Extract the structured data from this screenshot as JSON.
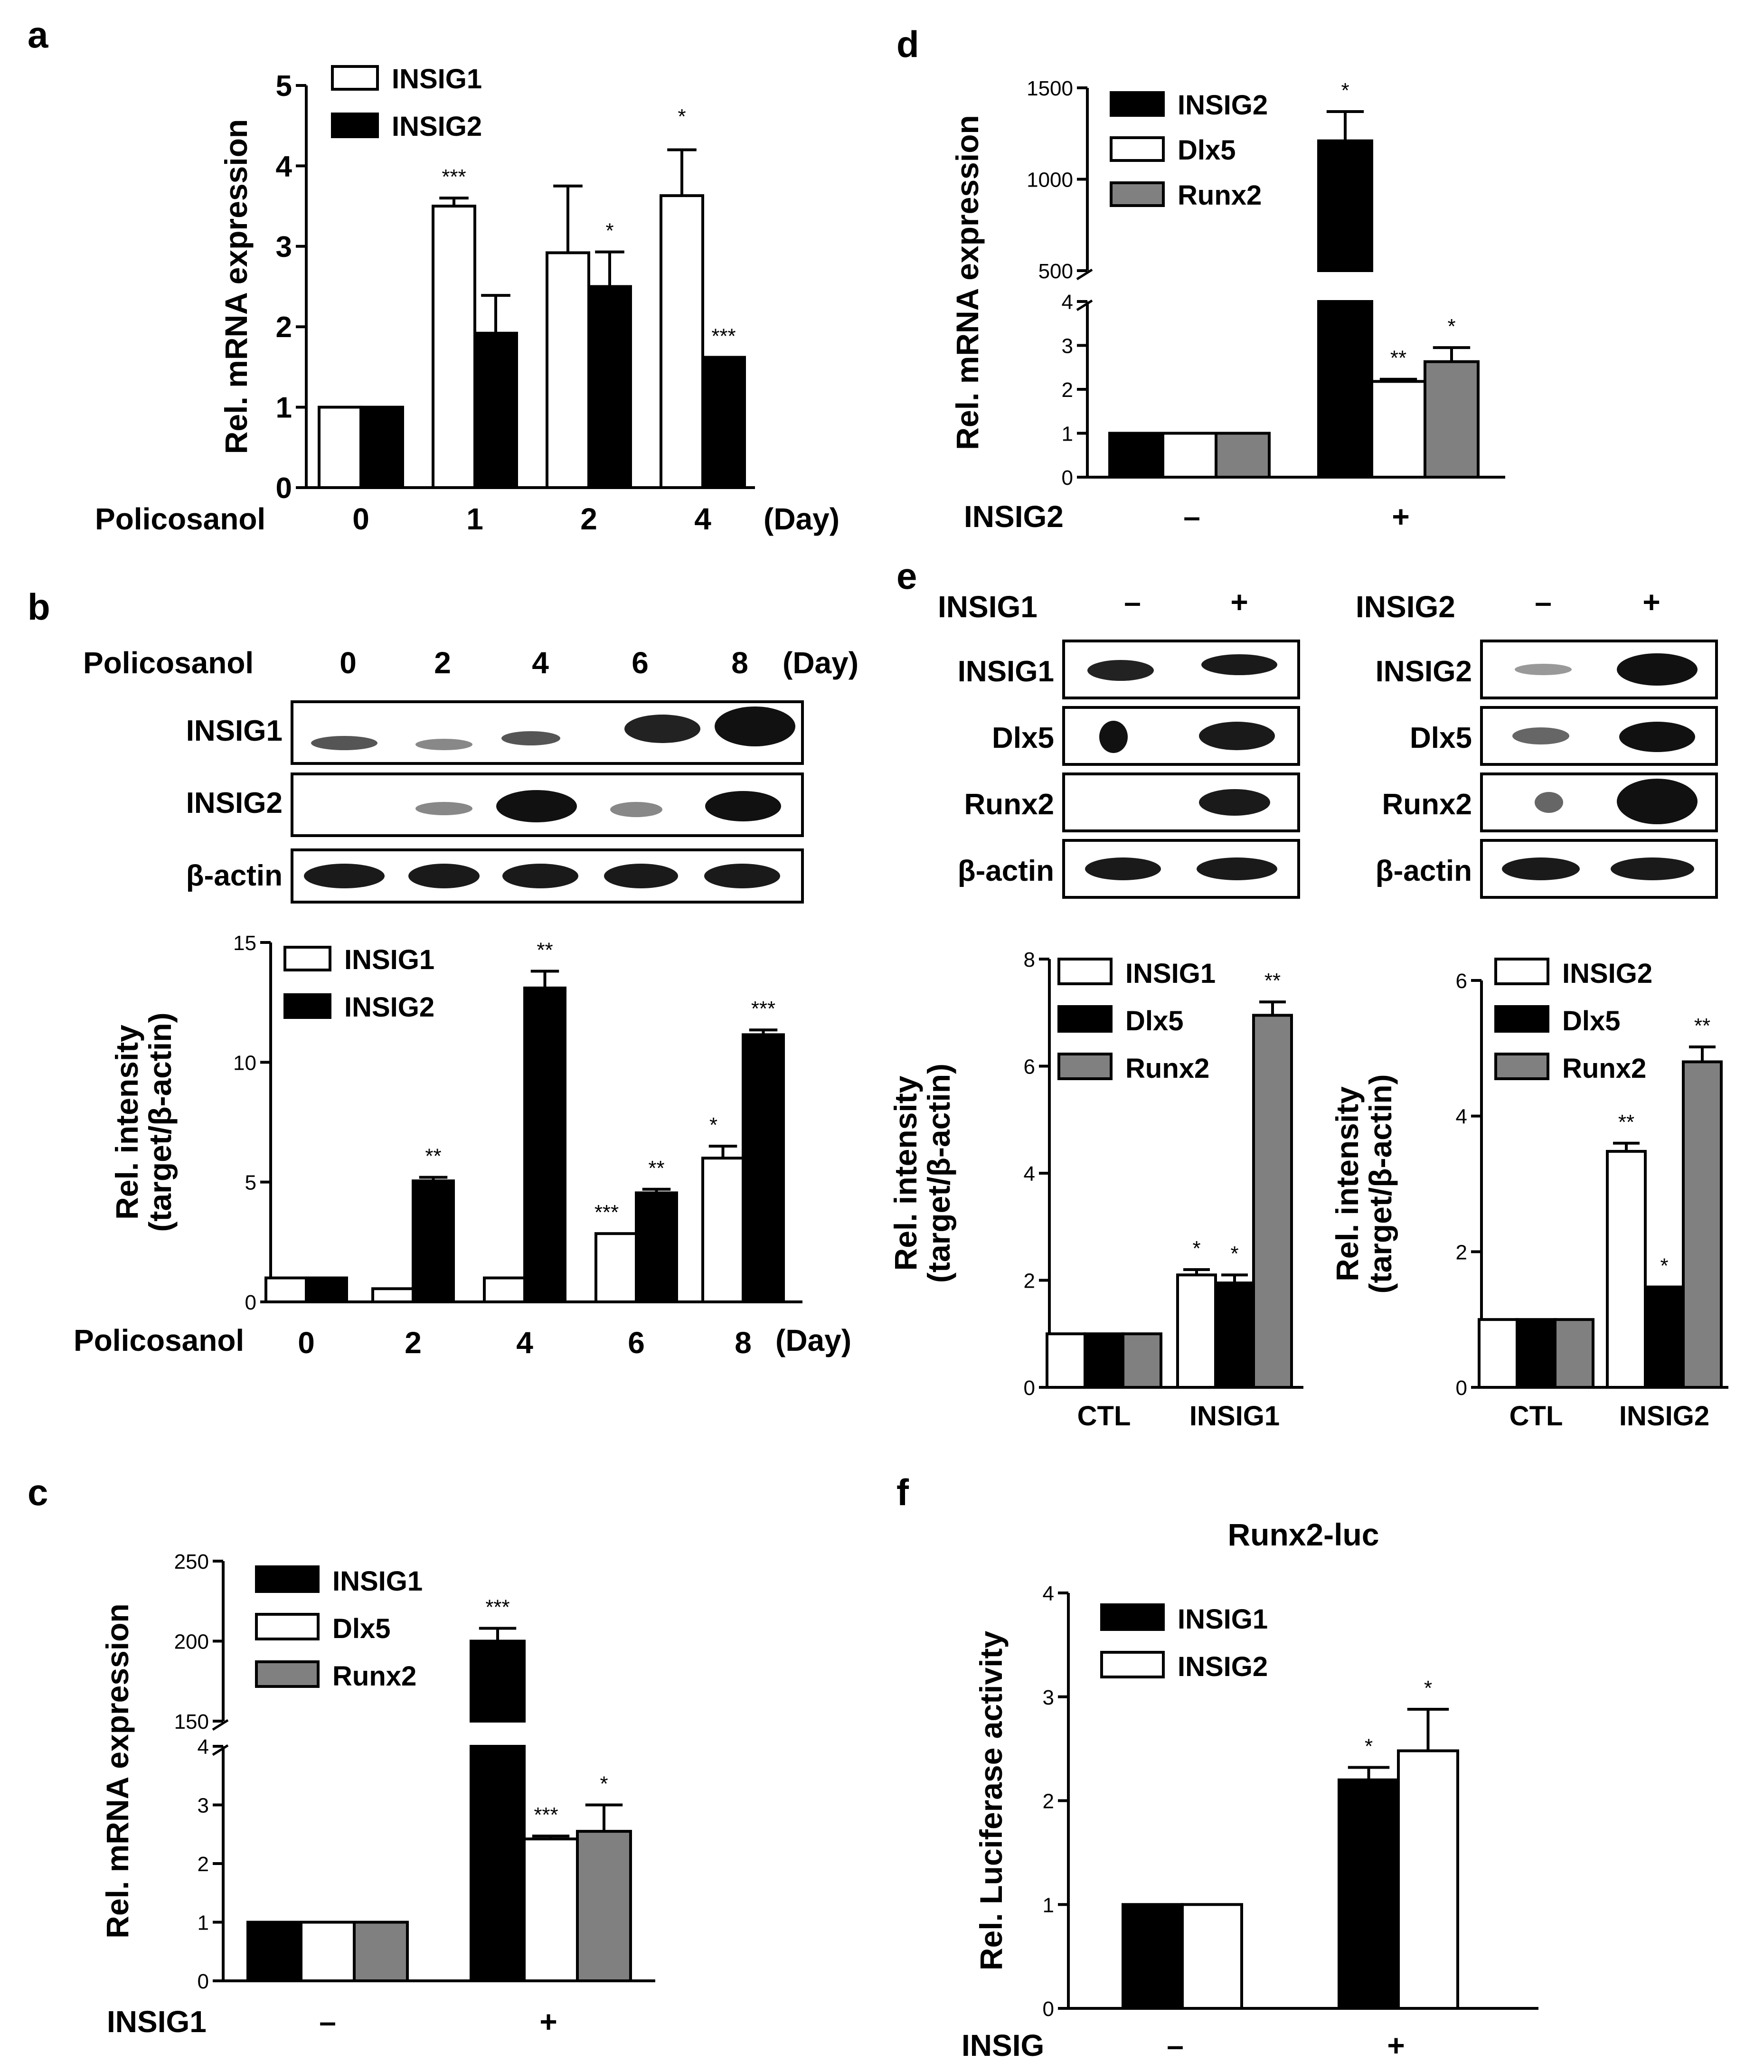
{
  "colors": {
    "open": "#ffffff",
    "black": "#000000",
    "grey": "#808080",
    "band": "#222222"
  },
  "panels": {
    "a": {
      "letter": "a",
      "treatment": "Policosanol",
      "unit": "(Day)"
    },
    "b": {
      "letter": "b",
      "treatment_top": "Policosanol",
      "unit_top": "(Day)",
      "days": [
        "0",
        "2",
        "4",
        "6",
        "8"
      ],
      "rows": [
        {
          "label": "INSIG1"
        },
        {
          "label": "INSIG2"
        },
        {
          "label": "β-actin"
        }
      ],
      "treatment_bottom": "Policosanol",
      "unit_bottom": "(Day)"
    },
    "c": {
      "letter": "c",
      "treatment": "INSIG1",
      "minus": "–",
      "plus": "+"
    },
    "d": {
      "letter": "d",
      "treatment": "INSIG2",
      "minus": "–",
      "plus": "+"
    },
    "e": {
      "letter": "e",
      "left": {
        "treatment": "INSIG1",
        "minus": "–",
        "plus": "+",
        "rows": [
          {
            "label": "INSIG1"
          },
          {
            "label": "Dlx5"
          },
          {
            "label": "Runx2"
          },
          {
            "label": "β-actin"
          }
        ]
      },
      "right": {
        "treatment": "INSIG2",
        "minus": "–",
        "plus": "+",
        "rows": [
          {
            "label": "INSIG2"
          },
          {
            "label": "Dlx5"
          },
          {
            "label": "Runx2"
          },
          {
            "label": "β-actin"
          }
        ]
      }
    },
    "f": {
      "letter": "f",
      "treatment": "INSIG",
      "minus": "–",
      "plus": "+"
    }
  },
  "chart_data": [
    {
      "id": "a",
      "type": "bar",
      "ylabel": "Rel. mRNA expression",
      "ylim": [
        0,
        5
      ],
      "yticks": [
        "0",
        "1",
        "2",
        "3",
        "4",
        "5"
      ],
      "categories": [
        "0",
        "1",
        "2",
        "4"
      ],
      "series": [
        {
          "name": "INSIG1",
          "color": "open",
          "values": [
            1,
            3.5,
            2.92,
            3.63
          ],
          "errors": [
            0,
            0.1,
            0.83,
            0.57
          ],
          "sig": [
            "",
            "***",
            "",
            ""
          ]
        },
        {
          "name": "INSIG2",
          "color": "black",
          "values": [
            1,
            1.92,
            2.5,
            1.62
          ],
          "errors": [
            0,
            0.47,
            0.43,
            0
          ],
          "sig": [
            "",
            "",
            "*",
            "***"
          ]
        }
      ],
      "extra_sig": [
        {
          "cat": 3,
          "text": "*"
        }
      ]
    },
    {
      "id": "b",
      "type": "bar",
      "ylabel": "Rel. intensity",
      "ylabel2": "(target/β-actin)",
      "ylim": [
        0,
        15
      ],
      "yticks": [
        "0",
        "5",
        "10",
        "15"
      ],
      "categories": [
        "0",
        "2",
        "4",
        "6",
        "8"
      ],
      "series": [
        {
          "name": "INSIG1",
          "color": "open",
          "values": [
            1,
            0.55,
            1,
            2.85,
            6
          ],
          "errors": [
            0,
            0,
            0,
            0,
            0.5
          ],
          "sig": [
            "",
            "",
            "",
            "***",
            "*"
          ]
        },
        {
          "name": "INSIG2",
          "color": "black",
          "values": [
            1,
            5.05,
            13.1,
            4.55,
            11.15
          ],
          "errors": [
            0,
            0.15,
            0.7,
            0.15,
            0.2
          ],
          "sig": [
            "",
            "**",
            "**",
            "**",
            "***"
          ]
        }
      ]
    },
    {
      "id": "c",
      "type": "bar",
      "ylabel": "Rel. mRNA expression",
      "broken_axis": true,
      "yticks_low": [
        "0",
        "1",
        "2",
        "3",
        "4"
      ],
      "yticks_high": [
        "150",
        "200",
        "250"
      ],
      "categories": [
        "–",
        "+"
      ],
      "series": [
        {
          "name": "INSIG1",
          "color": "black",
          "values": [
            1,
            200
          ],
          "errors": [
            0,
            8
          ],
          "sig": [
            "",
            "***"
          ]
        },
        {
          "name": "Dlx5",
          "color": "open",
          "values": [
            1,
            2.42
          ],
          "errors": [
            0,
            0.05
          ],
          "sig": [
            "",
            "***"
          ]
        },
        {
          "name": "Runx2",
          "color": "grey",
          "values": [
            1,
            2.55
          ],
          "errors": [
            0,
            0.45
          ],
          "sig": [
            "",
            "*"
          ]
        }
      ]
    },
    {
      "id": "d",
      "type": "bar",
      "ylabel": "Rel. mRNA expression",
      "broken_axis": true,
      "yticks_low": [
        "0",
        "1",
        "2",
        "3",
        "4"
      ],
      "yticks_high": [
        "500",
        "1000",
        "1500"
      ],
      "categories": [
        "–",
        "+"
      ],
      "series": [
        {
          "name": "INSIG2",
          "color": "black",
          "values": [
            1,
            1210
          ],
          "errors": [
            0,
            160
          ],
          "sig": [
            "",
            "*"
          ]
        },
        {
          "name": "Dlx5",
          "color": "open",
          "values": [
            1,
            2.18
          ],
          "errors": [
            0,
            0.05
          ],
          "sig": [
            "",
            "**"
          ]
        },
        {
          "name": "Runx2",
          "color": "grey",
          "values": [
            1,
            2.63
          ],
          "errors": [
            0,
            0.32
          ],
          "sig": [
            "",
            "*"
          ]
        }
      ]
    },
    {
      "id": "e1",
      "type": "bar",
      "ylabel": "Rel. intensity",
      "ylabel2": "(target/β-actin)",
      "ylim": [
        0,
        8
      ],
      "yticks": [
        "0",
        "2",
        "4",
        "6",
        "8"
      ],
      "categories": [
        "CTL",
        "INSIG1"
      ],
      "series": [
        {
          "name": "INSIG1",
          "color": "open",
          "values": [
            1,
            2.1
          ],
          "errors": [
            0,
            0.1
          ],
          "sig": [
            "",
            "*"
          ]
        },
        {
          "name": "Dlx5",
          "color": "black",
          "values": [
            1,
            1.95
          ],
          "errors": [
            0,
            0.15
          ],
          "sig": [
            "",
            "*"
          ]
        },
        {
          "name": "Runx2",
          "color": "grey",
          "values": [
            1,
            6.95
          ],
          "errors": [
            0,
            0.25
          ],
          "sig": [
            "",
            "**"
          ]
        }
      ]
    },
    {
      "id": "e2",
      "type": "bar",
      "ylabel": "Rel. intensity",
      "ylabel2": "(target/β-actin)",
      "ylim": [
        0,
        6
      ],
      "yticks": [
        "0",
        "2",
        "4",
        "6"
      ],
      "categories": [
        "CTL",
        "INSIG2"
      ],
      "series": [
        {
          "name": "INSIG2",
          "color": "open",
          "values": [
            1,
            3.48
          ],
          "errors": [
            0,
            0.12
          ],
          "sig": [
            "",
            "**"
          ]
        },
        {
          "name": "Dlx5",
          "color": "black",
          "values": [
            1,
            1.48
          ],
          "errors": [
            0,
            0
          ],
          "sig": [
            "",
            "*"
          ]
        },
        {
          "name": "Runx2",
          "color": "grey",
          "values": [
            1,
            4.8
          ],
          "errors": [
            0,
            0.22
          ],
          "sig": [
            "",
            "**"
          ]
        }
      ]
    },
    {
      "id": "f",
      "type": "bar",
      "title": "Runx2-luc",
      "ylabel": "Rel. Luciferase activity",
      "ylim": [
        0,
        4
      ],
      "yticks": [
        "0",
        "1",
        "2",
        "3",
        "4"
      ],
      "categories": [
        "–",
        "+"
      ],
      "series": [
        {
          "name": "INSIG1",
          "color": "black",
          "values": [
            1,
            2.2
          ],
          "errors": [
            0,
            0.12
          ],
          "sig": [
            "",
            "*"
          ]
        },
        {
          "name": "INSIG2",
          "color": "open",
          "values": [
            1,
            2.48
          ],
          "errors": [
            0,
            0.4
          ],
          "sig": [
            "",
            "*"
          ]
        }
      ]
    }
  ]
}
